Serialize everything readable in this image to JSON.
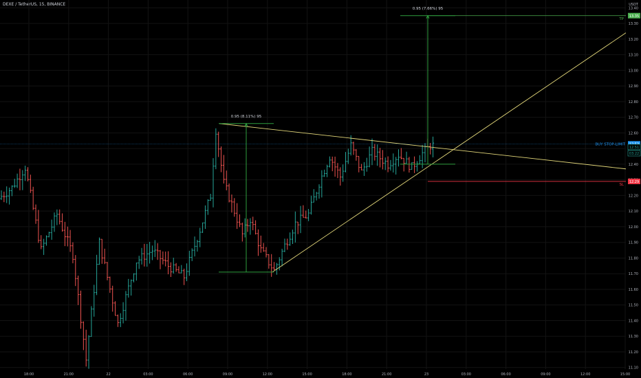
{
  "header": {
    "title": "DEXE / TetherUS, 15, BINANCE"
  },
  "colors": {
    "background": "#000000",
    "grid": "#131313",
    "up": "#26a69a",
    "down": "#ef5350",
    "trendline": "#e3d77a",
    "measure": "#2e9e3e",
    "tp": "#4caf50",
    "sl": "#f23645",
    "entry": "#2196f3",
    "axis_text": "#b2b5be"
  },
  "chart_data": {
    "type": "ohlc-bar",
    "title": "DEXE / TetherUS, 15, BINANCE",
    "y_unit": "USDT",
    "ylim": [
      11.09,
      13.45
    ],
    "y_ticks": [
      "11.10",
      "11.20",
      "11.30",
      "11.40",
      "11.50",
      "11.60",
      "11.70",
      "11.80",
      "11.90",
      "12.00",
      "12.10",
      "12.20",
      "12.30",
      "12.40",
      "12.50",
      "12.60",
      "12.70",
      "12.80",
      "12.90",
      "13.00",
      "13.10",
      "13.20",
      "13.30",
      "13.40"
    ],
    "x_ticks": [
      "18:00",
      "21:00",
      "22",
      "03:00",
      "06:00",
      "09:00",
      "12:00",
      "15:00",
      "18:00",
      "21:00",
      "23",
      "03:00",
      "06:00",
      "09:00",
      "12:00",
      "15:00"
    ],
    "grid": true,
    "ohlc_anchors": [
      [
        0,
        12.18
      ],
      [
        5,
        12.25
      ],
      [
        10,
        12.38
      ],
      [
        16,
        11.85
      ],
      [
        22,
        12.08
      ],
      [
        28,
        11.82
      ],
      [
        33,
        11.15
      ],
      [
        38,
        11.9
      ],
      [
        45,
        11.38
      ],
      [
        52,
        11.78
      ],
      [
        58,
        11.85
      ],
      [
        64,
        11.75
      ],
      [
        70,
        11.68
      ],
      [
        76,
        11.98
      ],
      [
        80,
        12.2
      ],
      [
        82,
        12.62
      ],
      [
        85,
        12.28
      ],
      [
        89,
        12.1
      ],
      [
        92,
        11.95
      ],
      [
        95,
        12.05
      ],
      [
        99,
        11.85
      ],
      [
        104,
        11.72
      ],
      [
        108,
        11.88
      ],
      [
        112,
        12.02
      ],
      [
        117,
        12.08
      ],
      [
        121,
        12.28
      ],
      [
        125,
        12.45
      ],
      [
        129,
        12.32
      ],
      [
        133,
        12.52
      ],
      [
        137,
        12.35
      ],
      [
        141,
        12.48
      ],
      [
        147,
        12.4
      ],
      [
        151,
        12.46
      ],
      [
        156,
        12.38
      ],
      [
        160,
        12.47
      ],
      [
        163,
        12.52
      ]
    ],
    "price_labels": [
      {
        "name": "TP",
        "value": "13.35",
        "price": 13.35
      },
      {
        "name": "BUY STOP-LIMIT",
        "value": "12.53",
        "price": 12.53
      },
      {
        "name": "current",
        "value": "12.51",
        "price": 12.51
      },
      {
        "name": "countdown",
        "value": "03:22",
        "price": 12.47
      },
      {
        "name": "SL",
        "value": "12.29",
        "price": 12.29
      }
    ],
    "measurements": [
      {
        "label": "0.95 (8.11%) 95",
        "from": 11.71,
        "to": 12.66
      },
      {
        "label": "0.95 (7.66%) 95",
        "from": 12.4,
        "to": 13.35
      }
    ]
  }
}
